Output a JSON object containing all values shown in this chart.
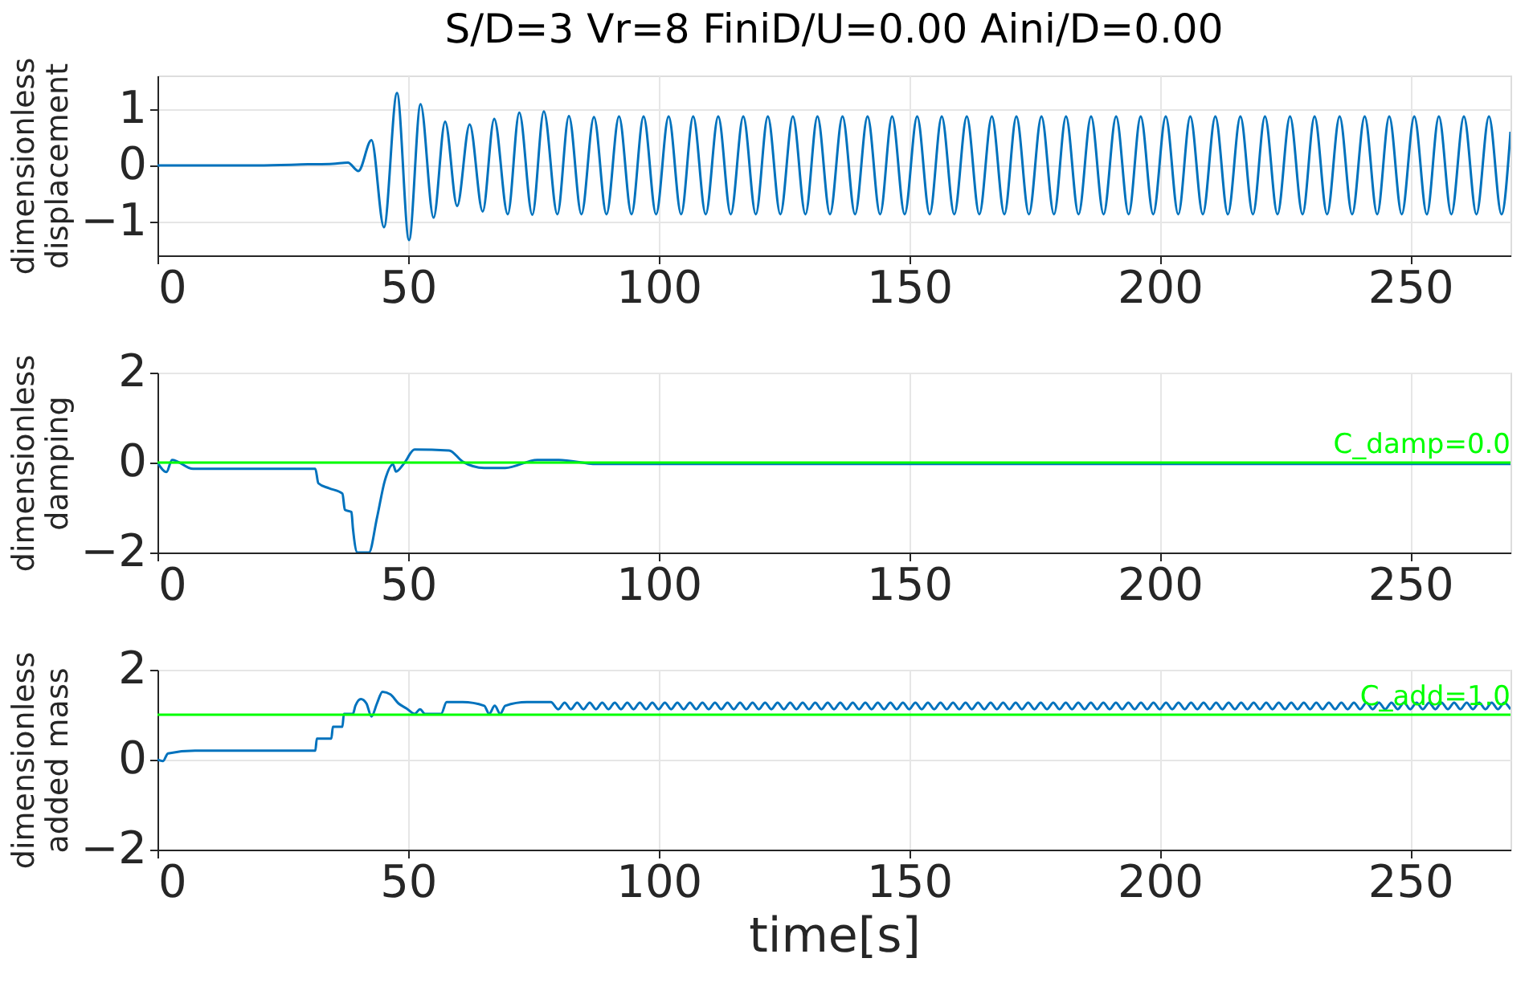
{
  "chart_data": [
    {
      "type": "line",
      "title": "S/D=3 Vr=8 FiniD/U=0.00 Aini/D=0.00",
      "ylabel": "dimensionless\ndisplacement",
      "xlim": [
        0,
        270
      ],
      "xticks": [
        0,
        50,
        100,
        150,
        200,
        250
      ],
      "ylim": [
        -1.6,
        1.6
      ],
      "yticks": [
        -1,
        0,
        1
      ],
      "grid": true,
      "legend": false,
      "series": [
        {
          "color": "#0072bd",
          "x": [
            0,
            20,
            30,
            35,
            38,
            40.1,
            42.7,
            45.2,
            47.8,
            50.2,
            52.5,
            55.1,
            57.4,
            59.8,
            62.3,
            64.9,
            67.2,
            69.9,
            72.2,
            74.8,
            77.1,
            79.8,
            82.1,
            84.6,
            87.1,
            89.6,
            92.1,
            94.6,
            97.0,
            99.5,
            102.0,
            104.5,
            106.9,
            109.4,
            111.9,
            114.4,
            116.9,
            119.4,
            121.8,
            124.3,
            126.8,
            129.3,
            131.7,
            134.2,
            136.7,
            139.2,
            141.7,
            144.2,
            146.6,
            149.1,
            151.6,
            154.1,
            156.5,
            159.0,
            161.5,
            164.0,
            166.5,
            169.0,
            171.4,
            173.9,
            176.4,
            178.9,
            181.3,
            183.8,
            186.3,
            188.8,
            191.3,
            193.8,
            196.2,
            198.7,
            201.2,
            203.7,
            206.1,
            208.6,
            211.1,
            213.6,
            216.1,
            218.6,
            221.0,
            223.5,
            226.0,
            228.5,
            230.9,
            233.4,
            235.9,
            238.4,
            240.9,
            243.4,
            245.8,
            248.3,
            250.8,
            253.3,
            255.7,
            258.2,
            260.7,
            263.2,
            265.7,
            268.2,
            270
          ],
          "values": [
            0,
            0,
            0.02,
            0.03,
            0.05,
            -0.1,
            0.45,
            -1.1,
            1.29,
            -1.33,
            1.09,
            -0.93,
            0.78,
            -0.72,
            0.73,
            -0.82,
            0.83,
            -0.87,
            0.94,
            -0.88,
            0.96,
            -0.87,
            0.88,
            -0.87,
            0.86,
            -0.87,
            0.87,
            -0.87,
            0.87,
            -0.87,
            0.87,
            -0.87,
            0.87,
            -0.87,
            0.87,
            -0.87,
            0.87,
            -0.87,
            0.87,
            -0.87,
            0.87,
            -0.87,
            0.87,
            -0.87,
            0.87,
            -0.87,
            0.87,
            -0.87,
            0.87,
            -0.87,
            0.87,
            -0.87,
            0.87,
            -0.87,
            0.87,
            -0.87,
            0.87,
            -0.87,
            0.87,
            -0.87,
            0.87,
            -0.87,
            0.87,
            -0.87,
            0.87,
            -0.87,
            0.87,
            -0.87,
            0.87,
            -0.87,
            0.87,
            -0.87,
            0.87,
            -0.87,
            0.87,
            -0.87,
            0.87,
            -0.87,
            0.87,
            -0.87,
            0.87,
            -0.87,
            0.87,
            -0.87,
            0.87,
            -0.87,
            0.87,
            -0.87,
            0.87,
            -0.87,
            0.87,
            -0.87,
            0.87,
            -0.87,
            0.87,
            -0.87,
            0.87,
            -0.87,
            0.6
          ]
        }
      ]
    },
    {
      "type": "line",
      "ylabel": "dimensionless\ndamping",
      "xlim": [
        0,
        270
      ],
      "xticks": [
        0,
        50,
        100,
        150,
        200,
        250
      ],
      "ylim": [
        -2,
        2
      ],
      "yticks": [
        -2,
        0,
        2
      ],
      "grid": true,
      "legend": false,
      "ref_lines": [
        {
          "axis": "y",
          "value": 0,
          "label": "C_damp=0.0",
          "color": "#00ff00"
        }
      ],
      "series": [
        {
          "color": "#0072bd",
          "x": [
            0,
            1.8,
            2.9,
            7.1,
            31.5,
            32.1,
            34.2,
            36.9,
            37.4,
            38.7,
            39.0,
            39.9,
            42.2,
            43.8,
            45.4,
            47.0,
            47.6,
            49.2,
            51.3,
            58.2,
            60.9,
            65.2,
            69.4,
            75.8,
            80.1,
            87.6,
            93,
            150,
            200,
            270
          ],
          "values": [
            0,
            -0.21,
            0.06,
            -0.14,
            -0.14,
            -0.46,
            -0.57,
            -0.69,
            -1.05,
            -1.1,
            -1.46,
            -2,
            -2,
            -1.23,
            -0.39,
            -0.04,
            -0.2,
            -0.02,
            0.29,
            0.27,
            0.02,
            -0.12,
            -0.12,
            0.06,
            0.06,
            -0.03,
            -0.03,
            -0.03,
            -0.03,
            -0.03
          ]
        }
      ]
    },
    {
      "type": "line",
      "ylabel": "dimensionless\nadded mass",
      "xlabel": "time[s]",
      "xlim": [
        0,
        270
      ],
      "xticks": [
        0,
        50,
        100,
        150,
        200,
        250
      ],
      "ylim": [
        -2,
        2
      ],
      "yticks": [
        -2,
        0,
        2
      ],
      "grid": true,
      "legend": false,
      "ref_lines": [
        {
          "axis": "y",
          "value": 1,
          "label": "C_add=1.0",
          "color": "#00ff00"
        }
      ],
      "series": [
        {
          "color": "#0072bd",
          "x": [
            0,
            1.1,
            2.1,
            7.5,
            31.5,
            31.8,
            34.7,
            35,
            36.9,
            37.2,
            39.0,
            39.5,
            40.6,
            41.7,
            42.7,
            43.8,
            44.9,
            46.5,
            48.1,
            49.7,
            51.3,
            52.4,
            53.4,
            56.6,
            57.7,
            60.9,
            65.2,
            66.2,
            67.3,
            68.4,
            69.4,
            73.7,
            78.5,
            80,
            81.25,
            82.5,
            83.75,
            85,
            86.25,
            87.5,
            88.75,
            90,
            91.25,
            92.5,
            93.75,
            95,
            96.25,
            97.5,
            98.75,
            100,
            101.25,
            102.5,
            103.75,
            105,
            106.25,
            107.5,
            108.75,
            110,
            111.25,
            112.5,
            113.75,
            115,
            116.25,
            117.5,
            118.75,
            120,
            121.25,
            122.5,
            123.75,
            125,
            126.25,
            127.5,
            128.75,
            130,
            131.25,
            132.5,
            133.75,
            135,
            136.25,
            137.5,
            138.75,
            140,
            141.25,
            142.5,
            143.75,
            145,
            146.25,
            147.5,
            148.75,
            150,
            151.25,
            152.5,
            153.75,
            155,
            156.25,
            157.5,
            158.75,
            160,
            161.25,
            162.5,
            163.75,
            165,
            166.25,
            167.5,
            168.75,
            170,
            171.25,
            172.5,
            173.75,
            175,
            176.25,
            177.5,
            178.75,
            180,
            181.25,
            182.5,
            183.75,
            185,
            186.25,
            187.5,
            188.75,
            190,
            191.25,
            192.5,
            193.75,
            195,
            196.25,
            197.5,
            198.75,
            200,
            201.25,
            202.5,
            203.75,
            205,
            206.25,
            207.5,
            208.75,
            210,
            211.25,
            212.5,
            213.75,
            215,
            216.25,
            217.5,
            218.75,
            220,
            221.25,
            222.5,
            223.75,
            225,
            226.25,
            227.5,
            228.75,
            230,
            231.25,
            232.5,
            233.75,
            235,
            236.25,
            237.5,
            238.75,
            240,
            241.25,
            242.5,
            243.75,
            245,
            246.25,
            247.5,
            248.75,
            250,
            251.25,
            252.5,
            253.75,
            255,
            256.25,
            257.5,
            258.75,
            260,
            261.25,
            262.5,
            263.75,
            265,
            266.25,
            267.5,
            268.75,
            270
          ],
          "values": [
            0,
            -0.03,
            0.14,
            0.2,
            0.2,
            0.47,
            0.47,
            0.73,
            0.73,
            1.02,
            1.02,
            1.2,
            1.35,
            1.25,
            0.96,
            1.25,
            1.51,
            1.45,
            1.25,
            1.14,
            1.02,
            1.12,
            1.02,
            1.02,
            1.28,
            1.28,
            1.2,
            1.02,
            1.2,
            1.02,
            1.2,
            1.28,
            1.28,
            1.12,
            1.27,
            1.12,
            1.27,
            1.12,
            1.27,
            1.12,
            1.27,
            1.12,
            1.27,
            1.12,
            1.27,
            1.12,
            1.27,
            1.12,
            1.27,
            1.12,
            1.27,
            1.12,
            1.27,
            1.12,
            1.27,
            1.12,
            1.27,
            1.12,
            1.27,
            1.12,
            1.27,
            1.12,
            1.27,
            1.12,
            1.27,
            1.12,
            1.27,
            1.12,
            1.27,
            1.12,
            1.27,
            1.12,
            1.27,
            1.12,
            1.27,
            1.12,
            1.27,
            1.12,
            1.27,
            1.12,
            1.27,
            1.12,
            1.27,
            1.12,
            1.27,
            1.12,
            1.27,
            1.12,
            1.27,
            1.12,
            1.27,
            1.12,
            1.27,
            1.12,
            1.27,
            1.12,
            1.27,
            1.12,
            1.27,
            1.12,
            1.27,
            1.12,
            1.27,
            1.12,
            1.27,
            1.12,
            1.27,
            1.12,
            1.27,
            1.12,
            1.27,
            1.12,
            1.27,
            1.12,
            1.27,
            1.12,
            1.27,
            1.12,
            1.27,
            1.12,
            1.27,
            1.12,
            1.27,
            1.12,
            1.27,
            1.12,
            1.27,
            1.12,
            1.27,
            1.12,
            1.27,
            1.12,
            1.27,
            1.12,
            1.27,
            1.12,
            1.27,
            1.12,
            1.27,
            1.12,
            1.27,
            1.12,
            1.27,
            1.12,
            1.27,
            1.12,
            1.27,
            1.12,
            1.27,
            1.12,
            1.27,
            1.12,
            1.27,
            1.12,
            1.27,
            1.12,
            1.27,
            1.12,
            1.27,
            1.12,
            1.27,
            1.12,
            1.27,
            1.12,
            1.27,
            1.12,
            1.27,
            1.12,
            1.27,
            1.12,
            1.27,
            1.12,
            1.27,
            1.12,
            1.27,
            1.12,
            1.27,
            1.12,
            1.27,
            1.12,
            1.27,
            1.12,
            1.27,
            1.12,
            1.27,
            1.12
          ]
        }
      ]
    }
  ]
}
